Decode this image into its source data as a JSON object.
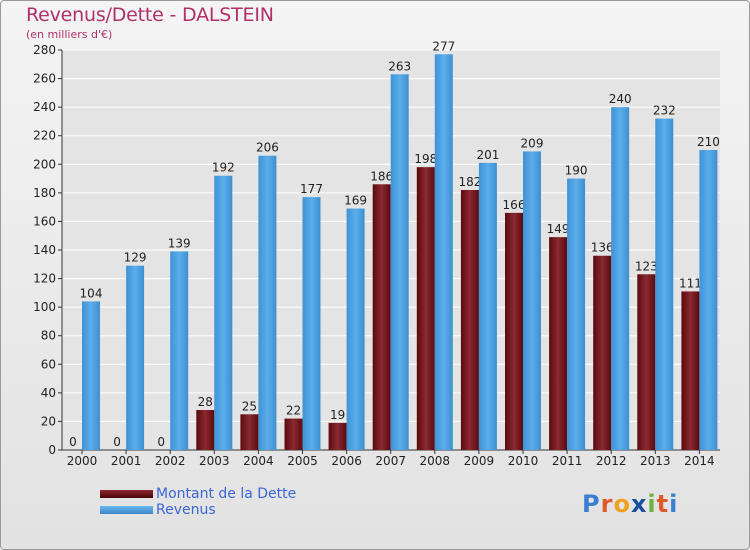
{
  "chart_data": {
    "type": "bar",
    "title": "Revenus/Dette - DALSTEIN",
    "subtitle": "(en milliers d'€)",
    "categories": [
      "2000",
      "2001",
      "2002",
      "2003",
      "2004",
      "2005",
      "2006",
      "2007",
      "2008",
      "2009",
      "2010",
      "2011",
      "2012",
      "2013",
      "2014"
    ],
    "series": [
      {
        "name": "Montant de la Dette",
        "values": [
          0,
          0,
          0,
          28,
          25,
          22,
          19,
          186,
          198,
          182,
          166,
          149,
          136,
          123,
          111
        ],
        "color": "#6e0d12"
      },
      {
        "name": "Revenus",
        "values": [
          104,
          129,
          139,
          192,
          206,
          177,
          169,
          263,
          277,
          201,
          209,
          190,
          240,
          232,
          210
        ],
        "color": "#4a9fe0"
      }
    ],
    "yticks": [
      0,
      20,
      40,
      60,
      80,
      100,
      120,
      140,
      160,
      180,
      200,
      220,
      240,
      260,
      280
    ],
    "ylim": [
      0,
      280
    ],
    "grid": true,
    "legend_position": "bottom-left"
  },
  "logo": {
    "letters": [
      "P",
      "r",
      "o",
      "x",
      "i",
      "t",
      "i"
    ],
    "colors": [
      "#3a7fd1",
      "#e0592a",
      "#f0a020",
      "#1a4fa0",
      "#6cb43f",
      "#e0592a",
      "#3a7fd1"
    ]
  }
}
